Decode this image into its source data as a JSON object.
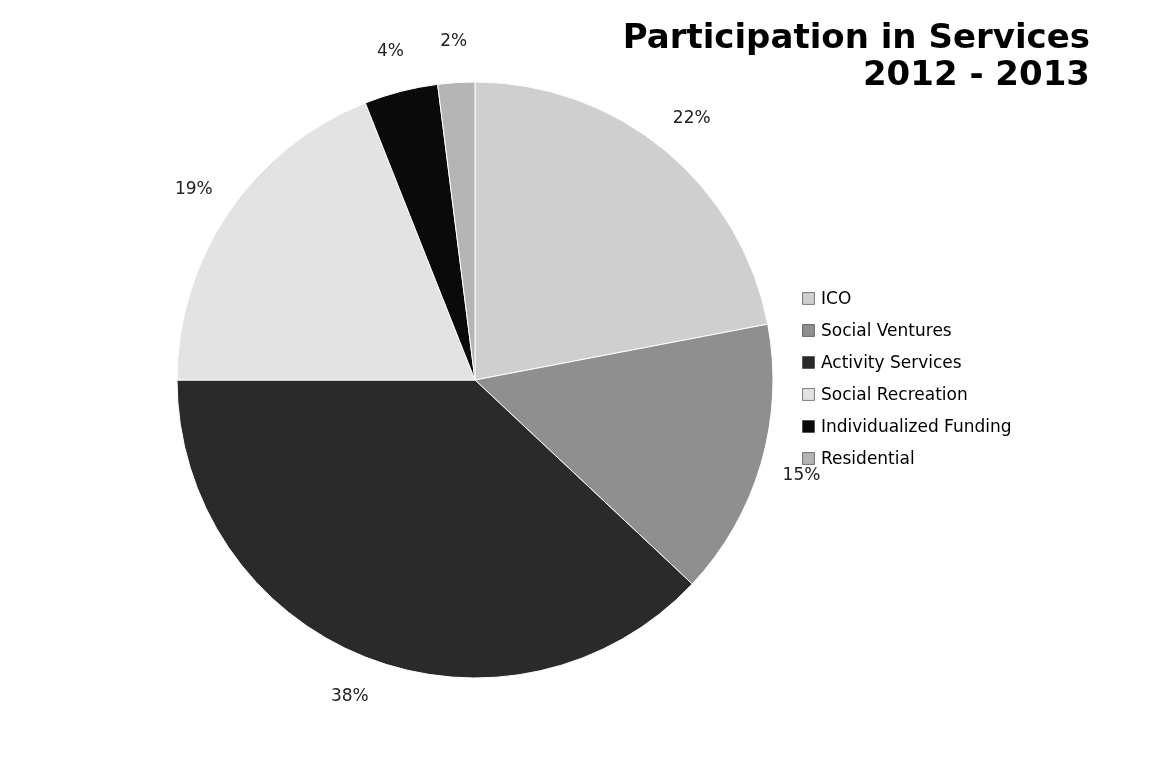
{
  "chart_data": {
    "type": "pie",
    "title": "Participation in Services",
    "subtitle": "2012 - 2013",
    "categories": [
      "ICO",
      "Social Ventures",
      "Activity Services",
      "Social Recreation",
      "Individualized Funding",
      "Residential"
    ],
    "values": [
      22,
      15,
      38,
      19,
      4,
      2
    ],
    "value_labels": [
      "22%",
      "15%",
      "38%",
      "19%",
      "4%",
      "2%"
    ],
    "colors": [
      "#cfcfcf",
      "#8f8f8f",
      "#2a2a2a",
      "#e3e3e3",
      "#0a0a0a",
      "#b5b5b5"
    ],
    "legend": "right"
  }
}
